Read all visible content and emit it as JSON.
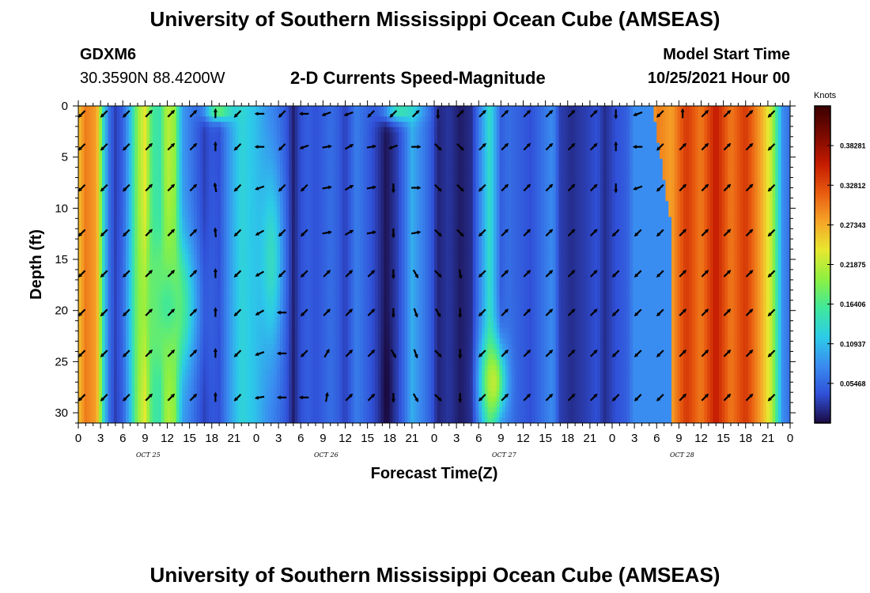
{
  "header": {
    "title": "University of Southern Mississippi Ocean Cube (AMSEAS)",
    "station": "GDXM6",
    "location": "30.3590N  88.4200W",
    "subtitle": "2-D Currents Speed-Magnitude",
    "model_start_label": "Model Start Time",
    "model_start_value": "10/25/2021 Hour 00"
  },
  "footer": {
    "title": "University of Southern Mississippi Ocean Cube (AMSEAS)"
  },
  "chart_data": {
    "type": "heatmap",
    "title": "2-D Currents Speed-Magnitude",
    "xlabel": "Forecast Time(Z)",
    "ylabel": "Depth (ft)",
    "x_ticks": [
      "0",
      "3",
      "6",
      "9",
      "12",
      "15",
      "18",
      "21",
      "0",
      "3",
      "6",
      "9",
      "12",
      "15",
      "18",
      "21",
      "0",
      "3",
      "6",
      "9",
      "12",
      "15",
      "18",
      "21",
      "0",
      "3",
      "6",
      "9",
      "12",
      "15",
      "18",
      "21",
      "0"
    ],
    "x_hours_range": [
      0,
      96
    ],
    "date_labels": [
      {
        "label": "OCT 25",
        "hour": 9
      },
      {
        "label": "OCT 26",
        "hour": 33
      },
      {
        "label": "OCT 27",
        "hour": 57
      },
      {
        "label": "OCT 28",
        "hour": 81
      }
    ],
    "y_ticks": [
      "0",
      "5",
      "10",
      "15",
      "20",
      "25",
      "30"
    ],
    "y_range": [
      0,
      31
    ],
    "colorbar": {
      "unit": "Knots",
      "labels": [
        "0.38281",
        "0.32812",
        "0.27343",
        "0.21875",
        "0.16406",
        "0.10937",
        "0.05468"
      ],
      "min": 0,
      "max": 0.4375,
      "colors": [
        "#1a0a40",
        "#3050d8",
        "#3a8cf0",
        "#2ccce8",
        "#40e89a",
        "#8ef040",
        "#e8e830",
        "#f6a428",
        "#e85a10",
        "#c41a00",
        "#7a0a00",
        "#3a0000"
      ]
    },
    "speed_by_hour": [
      {
        "hour": 0,
        "speed": 0.26
      },
      {
        "hour": 1,
        "speed": 0.3
      },
      {
        "hour": 2.5,
        "speed": 0.28
      },
      {
        "hour": 3.5,
        "speed": 0.12
      },
      {
        "hour": 4.2,
        "speed": 0.06
      },
      {
        "hour": 5,
        "speed": 0.03
      },
      {
        "hour": 6,
        "speed": 0.05
      },
      {
        "hour": 7,
        "speed": 0.11
      },
      {
        "hour": 8,
        "speed": 0.2
      },
      {
        "hour": 9,
        "speed": 0.24
      },
      {
        "hour": 10,
        "speed": 0.16
      },
      {
        "hour": 11,
        "speed": 0.15
      },
      {
        "hour": 12,
        "speed": 0.22
      },
      {
        "hour": 13,
        "speed": 0.2
      },
      {
        "hour": 14,
        "speed": 0.09
      },
      {
        "hour": 15.5,
        "speed": 0.06
      },
      {
        "hour": 17,
        "speed": 0.03
      },
      {
        "hour": 18,
        "speed": 0.045
      },
      {
        "hour": 19,
        "speed": 0.04
      },
      {
        "hour": 20.5,
        "speed": 0.09
      },
      {
        "hour": 22,
        "speed": 0.13
      },
      {
        "hour": 24,
        "speed": 0.11
      },
      {
        "hour": 25.5,
        "speed": 0.08
      },
      {
        "hour": 27,
        "speed": 0.06
      },
      {
        "hour": 28,
        "speed": 0.045
      },
      {
        "hour": 29,
        "speed": 0.012
      },
      {
        "hour": 30,
        "speed": 0.04
      },
      {
        "hour": 31,
        "speed": 0.05
      },
      {
        "hour": 32,
        "speed": 0.04
      },
      {
        "hour": 34,
        "speed": 0.06
      },
      {
        "hour": 35,
        "speed": 0.05
      },
      {
        "hour": 36,
        "speed": 0.03
      },
      {
        "hour": 37.5,
        "speed": 0.07
      },
      {
        "hour": 39,
        "speed": 0.05
      },
      {
        "hour": 40.5,
        "speed": 0.025
      },
      {
        "hour": 41.5,
        "speed": 0.005
      },
      {
        "hour": 43,
        "speed": 0.03
      },
      {
        "hour": 44,
        "speed": 0.06
      },
      {
        "hour": 45,
        "speed": 0.1
      },
      {
        "hour": 46,
        "speed": 0.08
      },
      {
        "hour": 47.5,
        "speed": 0.05
      },
      {
        "hour": 48.5,
        "speed": 0.015
      },
      {
        "hour": 50,
        "speed": 0.025
      },
      {
        "hour": 51.5,
        "speed": 0.01
      },
      {
        "hour": 53,
        "speed": 0.02
      },
      {
        "hour": 54.5,
        "speed": 0.09
      },
      {
        "hour": 55.5,
        "speed": 0.14
      },
      {
        "hour": 57,
        "speed": 0.05
      },
      {
        "hour": 58,
        "speed": 0.06
      },
      {
        "hour": 59.5,
        "speed": 0.05
      },
      {
        "hour": 61,
        "speed": 0.04
      },
      {
        "hour": 62.5,
        "speed": 0.06
      },
      {
        "hour": 64,
        "speed": 0.08
      },
      {
        "hour": 65,
        "speed": 0.03
      },
      {
        "hour": 66.5,
        "speed": 0.02
      },
      {
        "hour": 68.5,
        "speed": 0.03
      },
      {
        "hour": 70,
        "speed": 0.04
      },
      {
        "hour": 71,
        "speed": 0.02
      },
      {
        "hour": 72.5,
        "speed": 0.04
      },
      {
        "hour": 74,
        "speed": 0.05
      },
      {
        "hour": 75,
        "speed": 0.08
      },
      {
        "hour": 76,
        "speed": 0.12
      },
      {
        "hour": 77,
        "speed": 0.24
      },
      {
        "hour": 78,
        "speed": 0.3
      },
      {
        "hour": 80,
        "speed": 0.28
      },
      {
        "hour": 82,
        "speed": 0.34
      },
      {
        "hour": 84,
        "speed": 0.3
      },
      {
        "hour": 86,
        "speed": 0.36
      },
      {
        "hour": 88,
        "speed": 0.3
      },
      {
        "hour": 90,
        "speed": 0.34
      },
      {
        "hour": 92,
        "speed": 0.28
      },
      {
        "hour": 93.5,
        "speed": 0.22
      },
      {
        "hour": 95,
        "speed": 0.08
      },
      {
        "hour": 96,
        "speed": 0.06
      }
    ],
    "speed_features": [
      {
        "hour": 12,
        "depth": 19.5,
        "speed": 0.3,
        "spread_hours": 2.2,
        "spread_depth": 4.5
      },
      {
        "hour": 12,
        "depth": 19.5,
        "speed": 0.16,
        "spread_hours": 3.5,
        "spread_depth": 7
      },
      {
        "hour": 19,
        "depth": 0.5,
        "speed": 0.18,
        "spread_hours": 2.0,
        "spread_depth": 1.0
      },
      {
        "hour": 43.5,
        "depth": 0.5,
        "speed": 0.15,
        "spread_hours": 2.5,
        "spread_depth": 1.1
      },
      {
        "hour": 41.6,
        "depth": 28,
        "speed": 0.0,
        "spread_hours": 0.6,
        "spread_depth": 6
      },
      {
        "hour": 56,
        "depth": 27,
        "speed": 0.22,
        "spread_hours": 1.6,
        "spread_depth": 4
      },
      {
        "hour": 26,
        "depth": 15,
        "speed": 0.14,
        "spread_hours": 1.5,
        "spread_depth": 9
      }
    ],
    "vector_hours": [
      0.5,
      3.5,
      6.5,
      9.5,
      12.5,
      15.5,
      18.5,
      21.5,
      24.5,
      27.5,
      30.5,
      33.5,
      36.5,
      39.5,
      42.5,
      45.5,
      48.5,
      51.5,
      54.5,
      57.5,
      60.5,
      63.5,
      66.5,
      69.5,
      72.5,
      75.5,
      78.5,
      81.5,
      84.5,
      87.5,
      90.5,
      93.5
    ],
    "vector_depths": [
      0.3,
      4,
      8,
      12.4,
      16.4,
      20.2,
      24.2,
      28.5
    ],
    "vector_directions_deg": [
      [
        225,
        225,
        225,
        225,
        225,
        225,
        225,
        225
      ],
      [
        225,
        225,
        225,
        225,
        225,
        225,
        225,
        225
      ],
      [
        225,
        225,
        225,
        225,
        225,
        225,
        225,
        225
      ],
      [
        45,
        45,
        45,
        45,
        45,
        45,
        45,
        45
      ],
      [
        45,
        45,
        45,
        45,
        45,
        45,
        45,
        45
      ],
      [
        45,
        45,
        45,
        45,
        45,
        45,
        45,
        45
      ],
      [
        90,
        90,
        100,
        95,
        90,
        90,
        90,
        90
      ],
      [
        225,
        225,
        225,
        225,
        225,
        225,
        225,
        225
      ],
      [
        180,
        180,
        200,
        210,
        210,
        210,
        200,
        190
      ],
      [
        225,
        225,
        225,
        225,
        225,
        180,
        180,
        180
      ],
      [
        180,
        200,
        225,
        225,
        225,
        225,
        225,
        180
      ],
      [
        200,
        10,
        10,
        10,
        45,
        45,
        60,
        80
      ],
      [
        200,
        30,
        30,
        30,
        45,
        45,
        45,
        45
      ],
      [
        225,
        10,
        10,
        10,
        45,
        45,
        45,
        45
      ],
      [
        225,
        200,
        270,
        270,
        270,
        270,
        300,
        270
      ],
      [
        45,
        0,
        0,
        10,
        300,
        290,
        290,
        300
      ],
      [
        270,
        315,
        315,
        315,
        315,
        300,
        315,
        315
      ],
      [
        45,
        315,
        315,
        315,
        280,
        270,
        270,
        270
      ],
      [
        45,
        45,
        225,
        225,
        225,
        225,
        225,
        225
      ],
      [
        45,
        45,
        45,
        45,
        45,
        45,
        45,
        45
      ],
      [
        45,
        45,
        45,
        45,
        45,
        45,
        45,
        45
      ],
      [
        45,
        45,
        45,
        45,
        45,
        45,
        45,
        45
      ],
      [
        45,
        45,
        45,
        45,
        45,
        45,
        45,
        45
      ],
      [
        45,
        45,
        45,
        45,
        45,
        45,
        45,
        45
      ],
      [
        270,
        90,
        270,
        225,
        225,
        225,
        225,
        225
      ],
      [
        200,
        180,
        200,
        225,
        225,
        225,
        225,
        225
      ],
      [
        225,
        225,
        225,
        225,
        225,
        225,
        225,
        225
      ],
      [
        90,
        45,
        45,
        45,
        45,
        45,
        45,
        45
      ],
      [
        45,
        45,
        45,
        45,
        45,
        45,
        45,
        45
      ],
      [
        45,
        45,
        45,
        45,
        45,
        45,
        45,
        45
      ],
      [
        45,
        45,
        45,
        45,
        45,
        45,
        45,
        45
      ],
      [
        225,
        225,
        225,
        225,
        225,
        225,
        225,
        225
      ]
    ]
  }
}
